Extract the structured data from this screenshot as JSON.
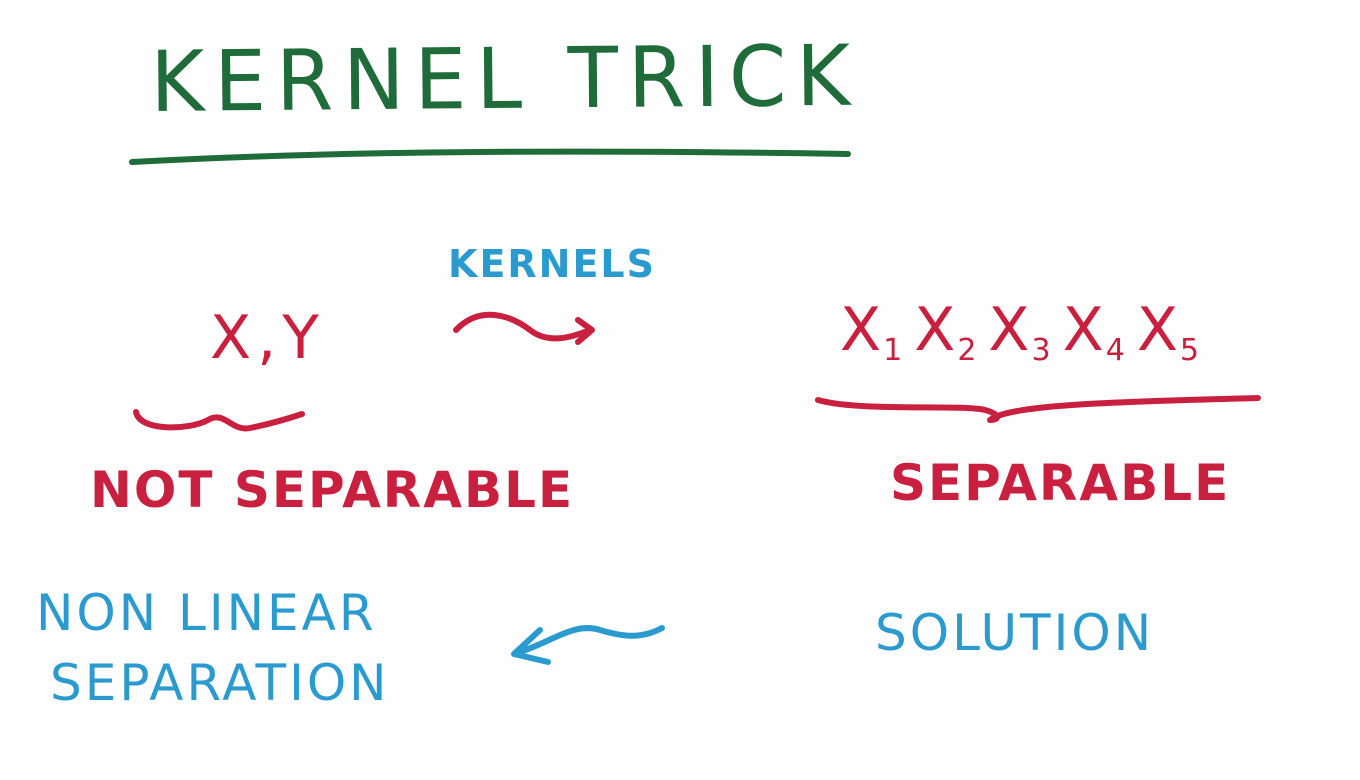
{
  "title": "KERNEL TRICK",
  "left": {
    "variables": [
      "X",
      "Y"
    ],
    "variable_separator": ",",
    "label": "NOT SEPARABLE"
  },
  "transform_label": "KERNELS",
  "right": {
    "variables": [
      {
        "base": "X",
        "sub": "1"
      },
      {
        "base": "X",
        "sub": "2"
      },
      {
        "base": "X",
        "sub": "3"
      },
      {
        "base": "X",
        "sub": "4"
      },
      {
        "base": "X",
        "sub": "5"
      }
    ],
    "label": "SEPARABLE"
  },
  "solution_label": "SOLUTION",
  "result_label": [
    "NON LINEAR",
    "SEPARATION"
  ],
  "colors": {
    "title": "#1f6b3a",
    "red": "#c8203e",
    "blue": "#2b9bcf"
  }
}
